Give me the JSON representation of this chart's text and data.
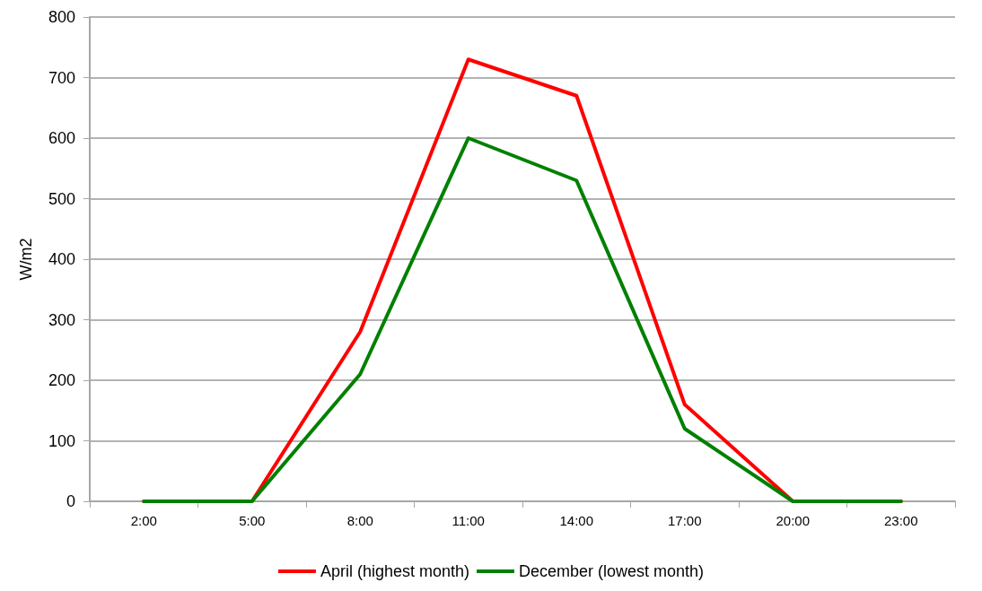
{
  "chart_data": {
    "type": "line",
    "ylabel": "W/m2",
    "categories": [
      "2:00",
      "5:00",
      "8:00",
      "11:00",
      "14:00",
      "17:00",
      "20:00",
      "23:00"
    ],
    "series": [
      {
        "name": "April (highest month)",
        "color": "#ff0000",
        "values": [
          0,
          0,
          280,
          730,
          670,
          160,
          0,
          0
        ]
      },
      {
        "name": "December (lowest month)",
        "color": "#008000",
        "values": [
          0,
          0,
          210,
          600,
          530,
          120,
          0,
          0
        ]
      }
    ],
    "ylim": [
      0,
      800
    ],
    "yticks": [
      0,
      100,
      200,
      300,
      400,
      500,
      600,
      700,
      800
    ],
    "grid": "y",
    "legend": "bottom",
    "marker": "none",
    "line_style": "solid"
  }
}
